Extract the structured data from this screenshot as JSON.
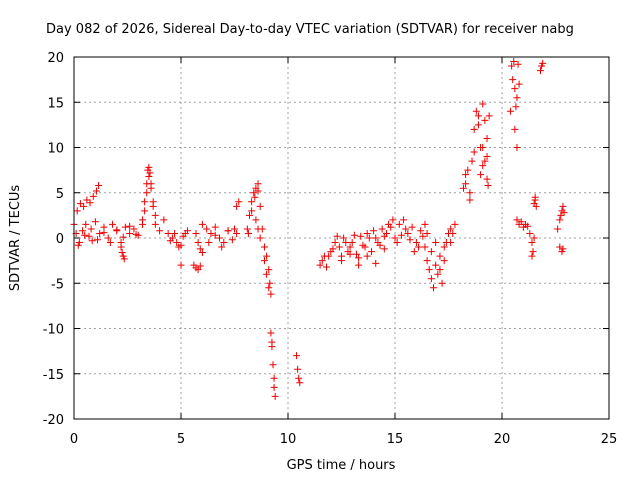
{
  "chart_data": {
    "type": "scatter",
    "title": "Day 082 of 2026, Sidereal Day-to-day VTEC variation (SDTVAR) for receiver nabg",
    "xlabel": "GPS time / hours",
    "ylabel": "SDTVAR / TECUs",
    "xlim": [
      0,
      25
    ],
    "ylim": [
      -20,
      20
    ],
    "xticks": [
      0,
      5,
      10,
      15,
      20,
      25
    ],
    "yticks": [
      -20,
      -15,
      -10,
      -5,
      0,
      5,
      10,
      15,
      20
    ],
    "grid": true,
    "marker": "+",
    "color": "#ee0000",
    "segments": [
      {
        "x": [
          0.0,
          0.15,
          0.3,
          0.45,
          0.6,
          0.75,
          0.9,
          1.05,
          1.15
        ],
        "y": [
          1.5,
          3.0,
          3.8,
          3.5,
          4.2,
          3.9,
          4.6,
          5.2,
          5.8
        ]
      },
      {
        "x": [
          0.1,
          0.25,
          0.4,
          0.55,
          0.7,
          0.85,
          1.0,
          1.2,
          1.4,
          1.6,
          1.8,
          2.0,
          2.2,
          2.4,
          2.6,
          2.8,
          3.0,
          3.2
        ],
        "y": [
          0.5,
          -0.5,
          0.8,
          1.5,
          0.2,
          -0.3,
          1.8,
          0.5,
          1.2,
          0.0,
          1.5,
          0.8,
          -0.5,
          1.2,
          0.5,
          1.0,
          0.3,
          1.5
        ]
      },
      {
        "x": [
          0.2,
          0.5,
          0.8,
          1.1,
          1.4,
          1.7,
          2.0,
          2.3,
          2.6,
          2.9
        ],
        "y": [
          -0.8,
          0.3,
          1.0,
          -0.2,
          0.6,
          -0.5,
          0.9,
          0.1,
          1.3,
          0.4
        ]
      },
      {
        "x": [
          2.2,
          2.25,
          2.3,
          2.35
        ],
        "y": [
          -1.0,
          -1.6,
          -2.0,
          -2.3
        ]
      },
      {
        "x": [
          3.2,
          3.3,
          3.4,
          3.45,
          3.5,
          3.55,
          3.6,
          3.7,
          3.8
        ],
        "y": [
          2.0,
          4.0,
          6.0,
          7.5,
          7.8,
          7.2,
          6.0,
          4.0,
          2.5
        ]
      },
      {
        "x": [
          3.3,
          3.4,
          3.5,
          3.6,
          3.7
        ],
        "y": [
          3.0,
          5.0,
          6.8,
          5.5,
          3.5
        ]
      },
      {
        "x": [
          3.8,
          4.0,
          4.2,
          4.4,
          4.6,
          4.8,
          5.0,
          5.2
        ],
        "y": [
          1.5,
          0.8,
          2.0,
          0.5,
          0.0,
          -0.5,
          -0.8,
          0.5
        ]
      },
      {
        "x": [
          4.5,
          4.7,
          4.9,
          5.1,
          5.3
        ],
        "y": [
          -0.3,
          0.5,
          -1.0,
          0.2,
          0.8
        ]
      },
      {
        "x": [
          5.0
        ],
        "y": [
          -3.0
        ]
      },
      {
        "x": [
          5.6,
          5.7,
          5.8,
          5.9
        ],
        "y": [
          -3.0,
          -3.3,
          -3.5,
          -3.1
        ]
      },
      {
        "x": [
          5.7,
          5.8,
          5.9,
          6.0
        ],
        "y": [
          0.5,
          -0.5,
          -1.2,
          -1.6
        ]
      },
      {
        "x": [
          6.0,
          6.2,
          6.4,
          6.6,
          6.8,
          7.0,
          7.2,
          7.4,
          7.6
        ],
        "y": [
          1.5,
          1.0,
          0.5,
          1.2,
          0.0,
          -0.5,
          0.8,
          -0.2,
          0.5
        ]
      },
      {
        "x": [
          6.3,
          6.6,
          6.9,
          7.2,
          7.5
        ],
        "y": [
          -0.5,
          0.3,
          -1.0,
          0.8,
          1.0
        ]
      },
      {
        "x": [
          7.6,
          7.7
        ],
        "y": [
          3.5,
          4.0
        ]
      },
      {
        "x": [
          8.1,
          8.2,
          8.3,
          8.4,
          8.5,
          8.6,
          8.7,
          8.8,
          8.9,
          9.0,
          9.1,
          9.15,
          9.2
        ],
        "y": [
          1.0,
          2.5,
          4.0,
          5.0,
          5.5,
          6.0,
          3.5,
          1.0,
          -1.0,
          -2.0,
          -3.5,
          -5.0,
          -6.2
        ]
      },
      {
        "x": [
          8.15,
          8.3,
          8.45,
          8.6
        ],
        "y": [
          0.5,
          3.0,
          4.5,
          5.2
        ]
      },
      {
        "x": [
          8.5,
          8.6,
          8.7
        ],
        "y": [
          2.0,
          1.0,
          0.0
        ]
      },
      {
        "x": [
          8.9,
          9.0,
          9.1
        ],
        "y": [
          -2.5,
          -4.0,
          -5.5
        ]
      },
      {
        "x": [
          9.2,
          9.25,
          9.3,
          9.35,
          9.4
        ],
        "y": [
          -10.5,
          -12.0,
          -14.0,
          -15.5,
          -17.5
        ]
      },
      {
        "x": [
          9.25,
          9.35
        ],
        "y": [
          -11.5,
          -16.5
        ]
      },
      {
        "x": [
          10.4,
          10.45,
          10.5,
          10.55
        ],
        "y": [
          -13.0,
          -14.5,
          -15.5,
          -16.0
        ]
      },
      {
        "x": [
          11.5,
          11.6,
          11.7,
          11.8,
          11.9,
          12.0,
          12.2,
          12.4,
          12.6,
          12.8,
          13.0,
          13.2,
          13.4,
          13.6,
          13.8,
          14.0,
          14.2,
          14.4,
          14.6,
          14.8,
          15.0,
          15.2,
          15.4,
          15.6,
          15.8,
          16.0,
          16.2,
          16.4
        ],
        "y": [
          -3.0,
          -2.5,
          -2.0,
          -3.2,
          -2.0,
          -1.5,
          -0.5,
          -1.0,
          0.0,
          -1.5,
          -0.5,
          -1.8,
          0.2,
          -1.0,
          0.0,
          0.8,
          -0.5,
          1.0,
          0.5,
          1.2,
          0.0,
          1.5,
          2.0,
          0.5,
          1.2,
          -0.5,
          0.8,
          1.5
        ]
      },
      {
        "x": [
          12.1,
          12.3,
          12.5,
          12.7,
          12.9,
          13.1,
          13.3,
          13.5,
          13.7,
          13.9,
          14.1,
          14.3,
          14.5,
          14.7,
          14.9,
          15.1,
          15.3,
          15.5,
          15.7,
          15.9,
          16.1,
          16.3
        ],
        "y": [
          -1.2,
          0.2,
          -2.0,
          -0.5,
          -1.0,
          0.3,
          -2.2,
          -0.8,
          0.5,
          -1.5,
          0.0,
          -0.8,
          0.2,
          1.5,
          2.0,
          -0.5,
          0.3,
          1.0,
          -0.2,
          -1.5,
          -1.0,
          0.2
        ]
      },
      {
        "x": [
          12.5,
          12.9,
          13.3,
          13.7,
          14.1,
          14.5
        ],
        "y": [
          -2.5,
          -1.8,
          -3.0,
          -2.0,
          -2.8,
          -1.2
        ]
      },
      {
        "x": [
          16.4,
          16.5,
          16.6,
          16.7,
          16.8,
          16.9,
          17.0,
          17.1,
          17.2,
          17.3,
          17.4,
          17.5,
          17.6
        ],
        "y": [
          -1.0,
          -2.5,
          -3.5,
          -4.5,
          -5.5,
          -3.0,
          -4.0,
          -2.0,
          -5.0,
          -1.0,
          -0.5,
          0.5,
          1.0
        ]
      },
      {
        "x": [
          16.5,
          16.7,
          16.9,
          17.1,
          17.3
        ],
        "y": [
          0.5,
          -1.5,
          -0.5,
          -3.5,
          -2.5
        ]
      },
      {
        "x": [
          17.6,
          17.7,
          17.8
        ],
        "y": [
          -0.5,
          0.5,
          1.5
        ]
      },
      {
        "x": [
          18.2,
          18.3,
          18.4,
          18.5,
          18.6,
          18.7,
          18.8,
          18.9,
          19.0,
          19.1,
          19.2,
          19.3,
          19.4
        ],
        "y": [
          5.5,
          7.0,
          7.5,
          5.0,
          8.5,
          12.0,
          14.0,
          12.5,
          10.0,
          14.8,
          13.0,
          11.0,
          13.5
        ]
      },
      {
        "x": [
          18.3,
          18.5,
          18.7,
          18.9,
          19.1,
          19.3
        ],
        "y": [
          6.0,
          4.2,
          9.5,
          13.5,
          8.0,
          9.0
        ]
      },
      {
        "x": [
          19.0,
          19.1,
          19.2,
          19.3,
          19.35
        ],
        "y": [
          7.0,
          10.0,
          8.5,
          6.5,
          5.8
        ]
      },
      {
        "x": [
          20.4,
          20.5,
          20.6,
          20.7,
          20.8
        ],
        "y": [
          14.0,
          17.5,
          16.5,
          15.5,
          17.0
        ]
      },
      {
        "x": [
          20.45,
          20.55,
          20.65,
          20.75
        ],
        "y": [
          19.0,
          19.5,
          14.5,
          19.2
        ]
      },
      {
        "x": [
          20.6,
          20.7
        ],
        "y": [
          12.0,
          10.0
        ]
      },
      {
        "x": [
          21.8,
          21.85,
          21.9
        ],
        "y": [
          18.5,
          19.0,
          19.3
        ]
      },
      {
        "x": [
          20.7,
          20.8,
          20.9,
          21.0,
          21.1,
          21.2
        ],
        "y": [
          2.0,
          1.5,
          1.8,
          1.2,
          1.5,
          1.3
        ]
      },
      {
        "x": [
          21.3,
          21.4,
          21.45,
          21.5,
          21.55,
          21.6
        ],
        "y": [
          0.5,
          -0.5,
          -1.5,
          0.0,
          4.5,
          3.5
        ]
      },
      {
        "x": [
          21.4,
          21.5,
          21.55
        ],
        "y": [
          -2.0,
          3.8,
          4.2
        ]
      },
      {
        "x": [
          22.6,
          22.7,
          22.75,
          22.8,
          22.85,
          22.9
        ],
        "y": [
          1.0,
          2.0,
          2.5,
          3.0,
          3.5,
          2.8
        ]
      },
      {
        "x": [
          22.7,
          22.8,
          22.85
        ],
        "y": [
          -1.0,
          -1.5,
          -1.2
        ]
      }
    ]
  }
}
